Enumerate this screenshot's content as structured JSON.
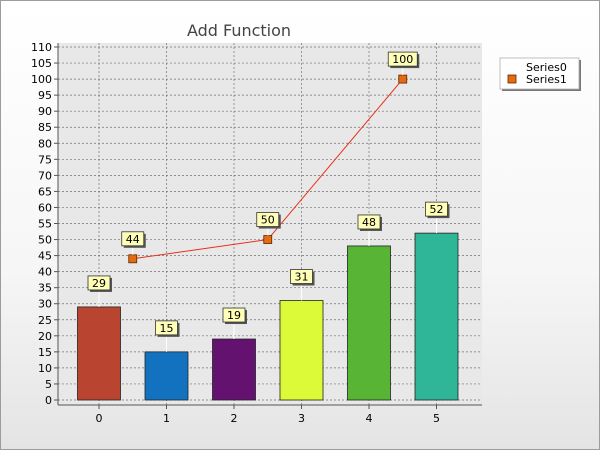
{
  "chart_data": {
    "type": "bar",
    "title": "Add Function",
    "xlabel": "",
    "ylabel": "",
    "categories": [
      "0",
      "1",
      "2",
      "3",
      "4",
      "5"
    ],
    "ylim": [
      0,
      110
    ],
    "yticks": [
      0,
      5,
      10,
      15,
      20,
      25,
      30,
      35,
      40,
      45,
      50,
      55,
      60,
      65,
      70,
      75,
      80,
      85,
      90,
      95,
      100,
      105,
      110
    ],
    "grid": true,
    "legend_position": "top-right",
    "series": [
      {
        "name": "Series0",
        "type": "bar",
        "x": [
          0,
          1,
          2,
          3,
          4,
          5
        ],
        "values": [
          29,
          15,
          19,
          31,
          48,
          52
        ],
        "colors": [
          "#b94430",
          "#1372bf",
          "#63136f",
          "#dcfa37",
          "#58b435",
          "#2fb597"
        ]
      },
      {
        "name": "Series1",
        "type": "line",
        "x": [
          0.5,
          2.5,
          4.5
        ],
        "values": [
          44,
          50,
          100
        ],
        "color": "#e8301a",
        "marker_color": "#e66a10"
      }
    ],
    "label_bg": "#ffffb8"
  }
}
